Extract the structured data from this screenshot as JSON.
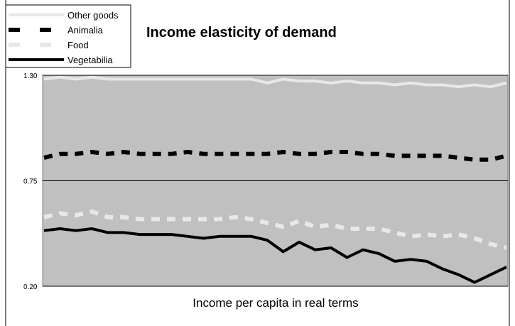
{
  "chart_data": {
    "type": "line",
    "title": "Income elasticity of demand",
    "xlabel": "Income per capita in real terms",
    "ylabel": "",
    "ylim": [
      0.2,
      1.3
    ],
    "yticks": [
      {
        "value": 1.3,
        "label": "1.30"
      },
      {
        "value": 0.75,
        "label": "0.75"
      },
      {
        "value": 0.2,
        "label": "0.20"
      }
    ],
    "grid": "horizontal",
    "legend_position": "top-left",
    "plot_background": "#c0c0c0",
    "x": [
      1,
      2,
      3,
      4,
      5,
      6,
      7,
      8,
      9,
      10,
      11,
      12,
      13,
      14,
      15,
      16,
      17,
      18,
      19,
      20,
      21,
      22,
      23,
      24,
      25,
      26,
      27,
      28,
      29,
      30
    ],
    "series": [
      {
        "name": "Other goods",
        "color": "#e8e8e8",
        "style": "solid",
        "values": [
          1.28,
          1.29,
          1.28,
          1.29,
          1.28,
          1.28,
          1.28,
          1.28,
          1.28,
          1.28,
          1.28,
          1.28,
          1.28,
          1.28,
          1.26,
          1.28,
          1.27,
          1.27,
          1.26,
          1.27,
          1.26,
          1.26,
          1.25,
          1.26,
          1.25,
          1.25,
          1.24,
          1.25,
          1.24,
          1.26
        ]
      },
      {
        "name": "Animalia",
        "color": "#000000",
        "style": "dashed",
        "values": [
          0.87,
          0.89,
          0.89,
          0.9,
          0.89,
          0.9,
          0.89,
          0.89,
          0.89,
          0.9,
          0.89,
          0.89,
          0.89,
          0.89,
          0.89,
          0.9,
          0.89,
          0.89,
          0.9,
          0.9,
          0.89,
          0.89,
          0.88,
          0.88,
          0.88,
          0.88,
          0.87,
          0.86,
          0.86,
          0.88
        ]
      },
      {
        "name": "Food",
        "color": "#e8e8e8",
        "style": "dashed",
        "values": [
          0.56,
          0.58,
          0.57,
          0.59,
          0.56,
          0.56,
          0.55,
          0.55,
          0.55,
          0.55,
          0.55,
          0.55,
          0.56,
          0.55,
          0.53,
          0.51,
          0.54,
          0.51,
          0.52,
          0.5,
          0.5,
          0.5,
          0.48,
          0.46,
          0.47,
          0.46,
          0.47,
          0.45,
          0.42,
          0.4
        ]
      },
      {
        "name": "Vegetabilia",
        "color": "#000000",
        "style": "solid",
        "values": [
          0.49,
          0.5,
          0.49,
          0.5,
          0.48,
          0.48,
          0.47,
          0.47,
          0.47,
          0.46,
          0.45,
          0.46,
          0.46,
          0.46,
          0.44,
          0.38,
          0.43,
          0.39,
          0.4,
          0.35,
          0.39,
          0.37,
          0.33,
          0.34,
          0.33,
          0.29,
          0.26,
          0.22,
          0.26,
          0.3
        ]
      }
    ]
  }
}
